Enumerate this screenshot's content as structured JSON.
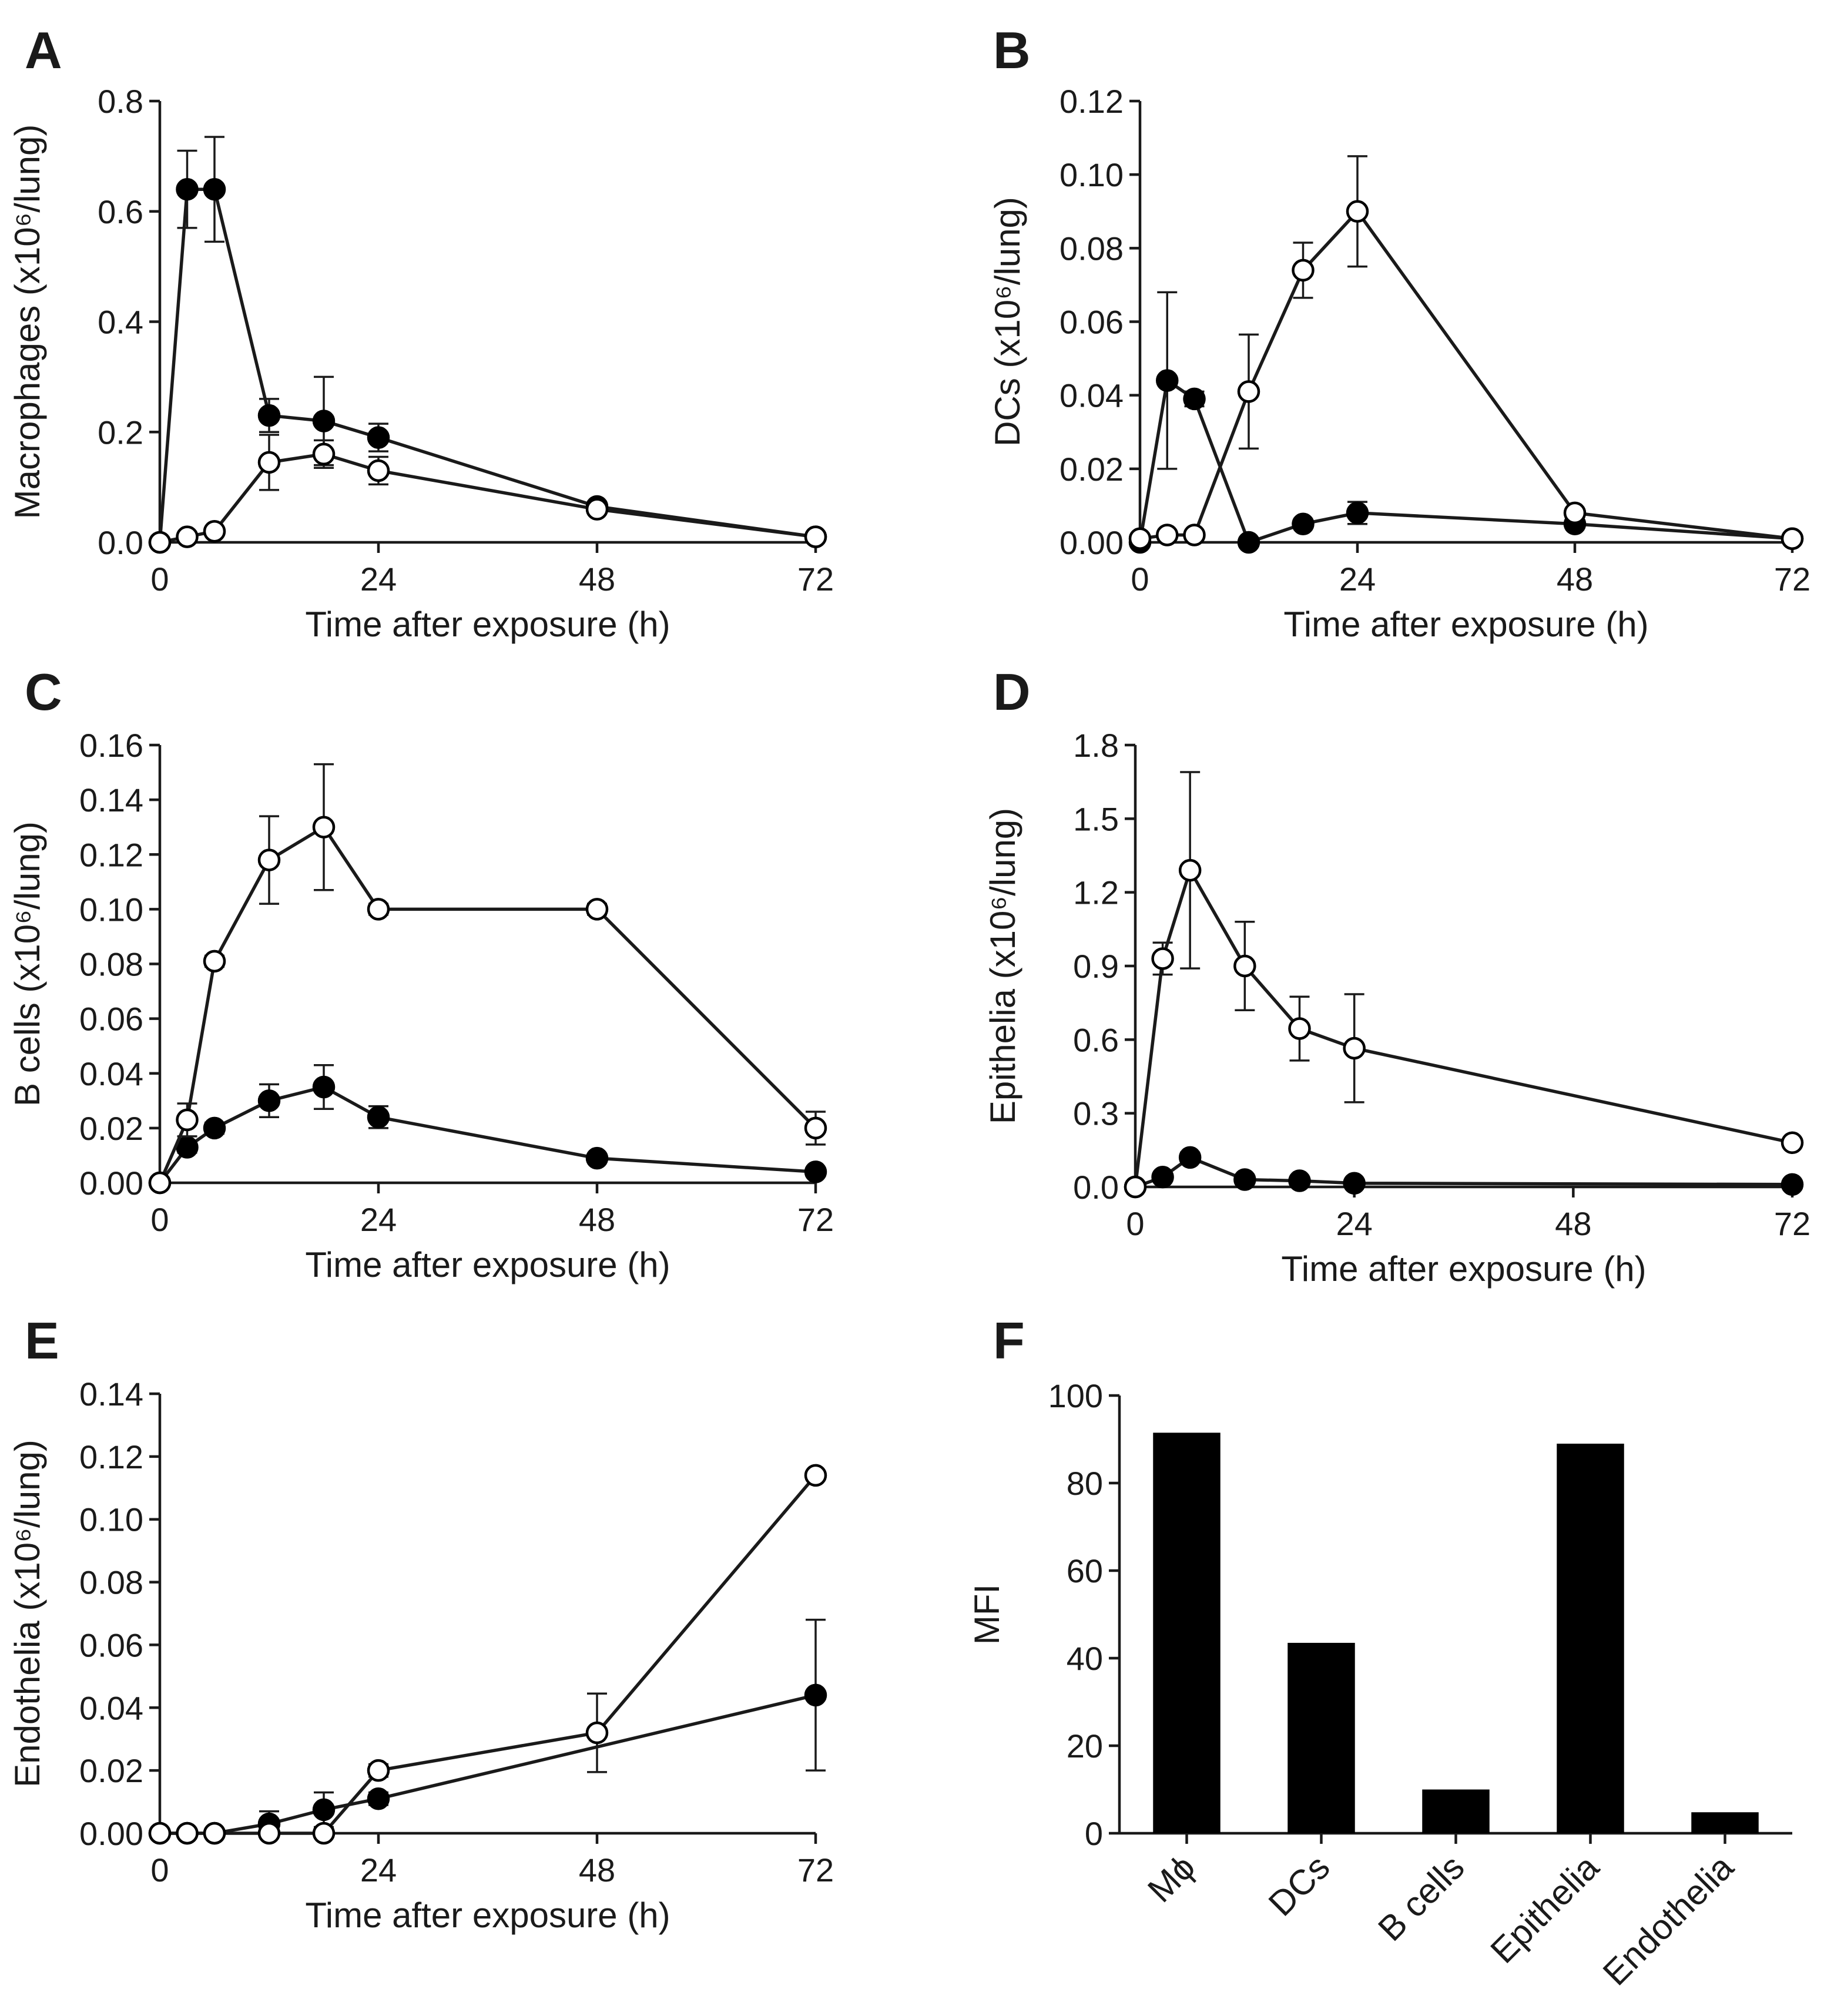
{
  "figure": {
    "panels": [
      "A",
      "B",
      "C",
      "D",
      "E",
      "F"
    ]
  },
  "chart_data": [
    {
      "panel": "A",
      "type": "line",
      "title": "",
      "xlabel": "Time after exposure (h)",
      "ylabel": "Macrophages (x10⁶/lung)",
      "xlim": [
        0,
        72
      ],
      "ylim": [
        0,
        0.8
      ],
      "xticks": [
        0,
        24,
        48,
        72
      ],
      "yticks": [
        0.0,
        0.2,
        0.4,
        0.6,
        0.8
      ],
      "ytick_labels": [
        "0.0",
        "0.2",
        "0.4",
        "0.6",
        "0.8"
      ],
      "series": [
        {
          "name": "filled",
          "marker": "filled-circle",
          "x": [
            0,
            3,
            6,
            12,
            18,
            24,
            48,
            72
          ],
          "y": [
            0.0,
            0.64,
            0.64,
            0.23,
            0.22,
            0.19,
            0.065,
            0.01
          ],
          "err": [
            0,
            0.07,
            0.095,
            0.03,
            0.08,
            0.025,
            0.008,
            0.003
          ]
        },
        {
          "name": "open",
          "marker": "open-circle",
          "x": [
            0,
            3,
            6,
            12,
            18,
            24,
            48,
            72
          ],
          "y": [
            0.0,
            0.01,
            0.02,
            0.145,
            0.16,
            0.13,
            0.06,
            0.01
          ],
          "err": [
            0,
            0.004,
            0.006,
            0.05,
            0.025,
            0.025,
            0.008,
            0.003
          ]
        }
      ]
    },
    {
      "panel": "B",
      "type": "line",
      "title": "",
      "xlabel": "Time after exposure (h)",
      "ylabel": "DCs (x10⁶/lung)",
      "xlim": [
        0,
        72
      ],
      "ylim": [
        0,
        0.12
      ],
      "xticks": [
        0,
        24,
        48,
        72
      ],
      "yticks": [
        0.0,
        0.02,
        0.04,
        0.06,
        0.08,
        0.1,
        0.12
      ],
      "ytick_labels": [
        "0.00",
        "0.02",
        "0.04",
        "0.06",
        "0.08",
        "0.10",
        "0.12"
      ],
      "series": [
        {
          "name": "filled",
          "marker": "filled-circle",
          "x": [
            0,
            3,
            6,
            12,
            18,
            24,
            48,
            72
          ],
          "y": [
            0.0,
            0.044,
            0.039,
            0.0,
            0.005,
            0.008,
            0.005,
            0.001
          ],
          "err": [
            0,
            0.024,
            0.002,
            0.001,
            0.001,
            0.003,
            0.001,
            0.0005
          ]
        },
        {
          "name": "open",
          "marker": "open-circle",
          "x": [
            0,
            3,
            6,
            12,
            18,
            24,
            48,
            72
          ],
          "y": [
            0.001,
            0.002,
            0.002,
            0.041,
            0.074,
            0.09,
            0.008,
            0.001
          ],
          "err": [
            0,
            0.001,
            0.001,
            0.0155,
            0.0075,
            0.015,
            0.001,
            0.0005
          ]
        }
      ]
    },
    {
      "panel": "C",
      "type": "line",
      "title": "",
      "xlabel": "Time after exposure (h)",
      "ylabel": "B cells (x10⁶/lung)",
      "xlim": [
        0,
        72
      ],
      "ylim": [
        0,
        0.16
      ],
      "xticks": [
        0,
        24,
        48,
        72
      ],
      "yticks": [
        0.0,
        0.02,
        0.04,
        0.06,
        0.08,
        0.1,
        0.12,
        0.14,
        0.16
      ],
      "ytick_labels": [
        "0.00",
        "0.02",
        "0.04",
        "0.06",
        "0.08",
        "0.10",
        "0.12",
        "0.14",
        "0.16"
      ],
      "series": [
        {
          "name": "filled",
          "marker": "filled-circle",
          "x": [
            0,
            3,
            6,
            12,
            18,
            24,
            48,
            72
          ],
          "y": [
            0.0,
            0.013,
            0.02,
            0.03,
            0.035,
            0.024,
            0.009,
            0.004
          ],
          "err": [
            0,
            0.002,
            0.002,
            0.006,
            0.008,
            0.004,
            0.001,
            0.001
          ]
        },
        {
          "name": "open",
          "marker": "open-circle",
          "x": [
            0,
            3,
            6,
            12,
            18,
            24,
            48,
            72
          ],
          "y": [
            0.0,
            0.023,
            0.081,
            0.118,
            0.13,
            0.1,
            0.1,
            0.02
          ],
          "err": [
            0,
            0.006,
            0.002,
            0.016,
            0.023,
            0.002,
            0.002,
            0.006
          ]
        }
      ]
    },
    {
      "panel": "D",
      "type": "line",
      "title": "",
      "xlabel": "Time after exposure (h)",
      "ylabel": "Epithelia (x10⁶/lung)",
      "xlim": [
        0,
        72
      ],
      "ylim": [
        0,
        1.8
      ],
      "xticks": [
        0,
        24,
        48,
        72
      ],
      "yticks": [
        0.0,
        0.3,
        0.6,
        0.9,
        1.2,
        1.5,
        1.8
      ],
      "ytick_labels": [
        "0.0",
        "0.3",
        "0.6",
        "0.9",
        "1.2",
        "1.5",
        "1.8"
      ],
      "series": [
        {
          "name": "filled",
          "marker": "filled-circle",
          "x": [
            0,
            3,
            6,
            12,
            18,
            24,
            72
          ],
          "y": [
            0.0,
            0.04,
            0.12,
            0.03,
            0.025,
            0.015,
            0.01
          ],
          "err": [
            0,
            0.01,
            0.02,
            0.01,
            0.005,
            0.005,
            0.003
          ]
        },
        {
          "name": "open",
          "marker": "open-circle",
          "x": [
            0,
            3,
            6,
            12,
            18,
            24,
            72
          ],
          "y": [
            0.0,
            0.93,
            1.29,
            0.9,
            0.645,
            0.565,
            0.18
          ],
          "err": [
            0,
            0.065,
            0.4,
            0.18,
            0.13,
            0.22,
            0.01
          ]
        }
      ]
    },
    {
      "panel": "E",
      "type": "line",
      "title": "",
      "xlabel": "Time after exposure (h)",
      "ylabel": "Endothelia (x10⁶/lung)",
      "xlim": [
        0,
        72
      ],
      "ylim": [
        0,
        0.14
      ],
      "xticks": [
        0,
        24,
        48,
        72
      ],
      "yticks": [
        0.0,
        0.02,
        0.04,
        0.06,
        0.08,
        0.1,
        0.12,
        0.14
      ],
      "ytick_labels": [
        "0.00",
        "0.02",
        "0.04",
        "0.06",
        "0.08",
        "0.10",
        "0.12",
        "0.14"
      ],
      "series": [
        {
          "name": "filled",
          "marker": "filled-circle",
          "x": [
            0,
            3,
            6,
            12,
            18,
            24,
            72
          ],
          "y": [
            0.0,
            0.0,
            0.0,
            0.003,
            0.0075,
            0.011,
            0.044
          ],
          "err": [
            0,
            0,
            0,
            0.004,
            0.0055,
            0.002,
            0.024
          ]
        },
        {
          "name": "open",
          "marker": "open-circle",
          "x": [
            0,
            3,
            6,
            12,
            18,
            24,
            48,
            72
          ],
          "y": [
            0.0,
            0.0,
            0.0,
            0.0,
            0.0,
            0.02,
            0.032,
            0.114
          ],
          "err": [
            0,
            0,
            0,
            0,
            0,
            0.002,
            0.0125,
            0.001
          ]
        }
      ]
    },
    {
      "panel": "F",
      "type": "bar",
      "title": "",
      "xlabel": "",
      "ylabel": "MFI",
      "categories": [
        "Mϕ",
        "DCs",
        "B cells",
        "Epithelia",
        "Endothelia"
      ],
      "values": [
        91.5,
        43.5,
        10,
        89,
        4.8
      ],
      "ylim": [
        0,
        100
      ],
      "yticks": [
        0,
        20,
        40,
        60,
        80,
        100
      ],
      "ytick_labels": [
        "0",
        "20",
        "40",
        "60",
        "80",
        "100"
      ],
      "tick_rotation": -45
    }
  ]
}
